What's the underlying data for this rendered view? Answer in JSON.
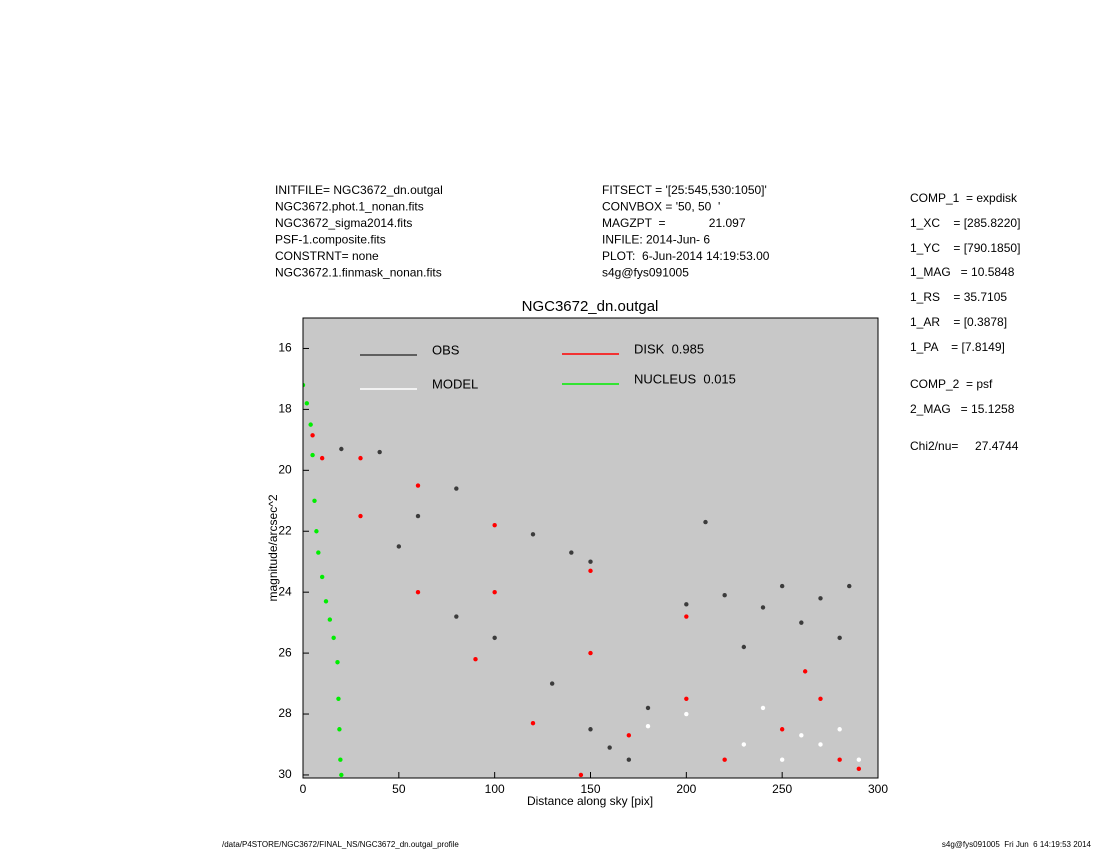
{
  "header": {
    "left": [
      "INITFILE= NGC3672_dn.outgal",
      "NGC3672.phot.1_nonan.fits",
      "NGC3672_sigma2014.fits",
      "PSF-1.composite.fits",
      "CONSTRNT= none",
      "NGC3672.1.finmask_nonan.fits"
    ],
    "middle": [
      "FITSECT = '[25:545,530:1050]'",
      "CONVBOX = '50, 50  '",
      "MAGZPT  =             21.097",
      "INFILE: 2014-Jun- 6",
      "PLOT:  6-Jun-2014 14:19:53.00",
      "s4g@fys091005"
    ],
    "right": [
      "COMP_1  = expdisk",
      "1_XC    = [285.8220]",
      "1_YC    = [790.1850]",
      "1_MAG   = 10.5848",
      "1_RS    = 35.7105",
      "1_AR    = [0.3878]",
      "1_PA    = [7.8149]",
      "COMP_2  = psf",
      "2_MAG   = 15.1258",
      "Chi2/nu=     27.4744"
    ]
  },
  "footer": {
    "left": "/data/P4STORE/NGC3672/FINAL_NS/NGC3672_dn.outgal_profile",
    "right": "s4g@fys091005  Fri Jun  6 14:19:53 2014"
  },
  "chart_data": {
    "type": "scatter",
    "title": "NGC3672_dn.outgal",
    "xlabel": "Distance along sky [pix]",
    "ylabel": "magnitude/arcsec^2",
    "xlim": [
      0,
      300
    ],
    "ylim": [
      30.1,
      15
    ],
    "xticks": [
      0,
      50,
      100,
      150,
      200,
      250,
      300
    ],
    "yticks": [
      16,
      18,
      20,
      22,
      24,
      26,
      28,
      30
    ],
    "series": [
      {
        "name": "OBS",
        "color": "#3c3c3c",
        "x": [
          20,
          40,
          60,
          80,
          100,
          120,
          130,
          140,
          150,
          160,
          180,
          200,
          220,
          240,
          250,
          260,
          270,
          280,
          285,
          230,
          210,
          170,
          150,
          50,
          80
        ],
        "values": [
          19.3,
          19.4,
          21.5,
          20.6,
          25.5,
          22.1,
          27,
          22.7,
          23.0,
          29.1,
          27.8,
          24.4,
          24.1,
          24.5,
          23.8,
          25,
          24.2,
          25.5,
          23.8,
          25.8,
          21.7,
          29.5,
          28.5,
          22.5,
          24.8
        ]
      },
      {
        "name": "MODEL",
        "color": "#ffffff",
        "x": [
          180,
          200,
          230,
          240,
          250,
          260,
          270,
          280,
          290
        ],
        "values": [
          28.4,
          28,
          29,
          27.8,
          29.5,
          28.7,
          29,
          28.5,
          29.5
        ]
      },
      {
        "name": "DISK  0.985",
        "color": "#ff0000",
        "x": [
          5,
          30,
          60,
          100,
          150,
          200,
          262,
          10,
          30,
          60,
          90,
          120,
          145,
          100,
          150,
          200,
          250,
          280,
          170,
          220,
          270,
          290
        ],
        "values": [
          18.85,
          19.6,
          20.5,
          21.8,
          23.3,
          24.8,
          26.6,
          19.6,
          21.5,
          24.0,
          26.2,
          28.3,
          30.0,
          24,
          26,
          27.5,
          28.5,
          29.5,
          28.7,
          29.5,
          27.5,
          29.8
        ]
      },
      {
        "name": "NUCLEUS  0.015",
        "color": "#00ee00",
        "x": [
          0,
          2,
          4,
          5,
          6,
          7,
          8,
          10,
          12,
          14,
          16,
          18,
          18.5,
          19,
          19.5,
          20
        ],
        "values": [
          17.2,
          17.8,
          18.5,
          19.5,
          21,
          22,
          22.7,
          23.5,
          24.3,
          24.9,
          25.5,
          26.3,
          27.5,
          28.5,
          29.5,
          30
        ]
      }
    ]
  }
}
